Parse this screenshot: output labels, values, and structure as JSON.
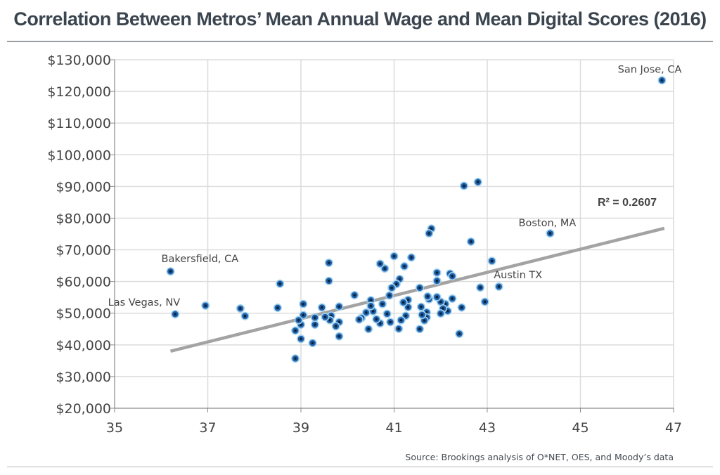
{
  "title": "Correlation Between Metros’ Mean Annual Wage and Mean Digital Scores (2016)",
  "source": "Source: Brookings analysis of O*NET, OES, and Moody’s data",
  "colors": {
    "title": "#3b4550",
    "point_fill": "#1e5fa8",
    "point_stroke": "#9fd0ee",
    "point_center": "#0b1f33",
    "trendline": "#a3a3a3",
    "grid": "#dcdcdc"
  },
  "chart_data": {
    "type": "scatter",
    "title": "Correlation Between Metros’ Mean Annual Wage and Mean Digital Scores (2016)",
    "xlabel": "",
    "ylabel": "",
    "xlim": [
      35,
      47
    ],
    "ylim": [
      20000,
      130000
    ],
    "x_ticks": [
      "35",
      "37",
      "39",
      "41",
      "43",
      "45",
      "47"
    ],
    "y_ticks": [
      "$20,000",
      "$30,000",
      "$40,000",
      "$50,000",
      "$60,000",
      "$70,000",
      "$80,000",
      "$90,000",
      "$100,000",
      "$110,000",
      "$120,000",
      "$130,000"
    ],
    "grid": true,
    "r_squared_label": "R² = 0.2607",
    "trendline": {
      "x": [
        36.2,
        46.8
      ],
      "y": [
        38000,
        76800
      ]
    },
    "annotations": [
      {
        "text": "San Jose, CA",
        "x": 46.75,
        "y": 123500
      },
      {
        "text": "Boston, MA",
        "x": 44.35,
        "y": 75200
      },
      {
        "text": "Austin TX",
        "x": 43.2,
        "y": 58400
      },
      {
        "text": "Bakersfield, CA",
        "x": 36.2,
        "y": 63200
      },
      {
        "text": "Las Vegas, NV",
        "x": 36.3,
        "y": 49700
      }
    ],
    "points": [
      [
        46.75,
        123500
      ],
      [
        44.35,
        75200
      ],
      [
        42.8,
        91400
      ],
      [
        42.5,
        90200
      ],
      [
        43.25,
        58400
      ],
      [
        43.1,
        66500
      ],
      [
        42.95,
        53600
      ],
      [
        42.85,
        58100
      ],
      [
        42.65,
        72600
      ],
      [
        42.4,
        43500
      ],
      [
        42.45,
        51800
      ],
      [
        42.25,
        54600
      ],
      [
        42.2,
        62500
      ],
      [
        42.25,
        61700
      ],
      [
        42.15,
        50700
      ],
      [
        42.1,
        52900
      ],
      [
        42.0,
        53600
      ],
      [
        42.05,
        51500
      ],
      [
        42.0,
        49900
      ],
      [
        41.92,
        55100
      ],
      [
        41.92,
        62800
      ],
      [
        41.92,
        60200
      ],
      [
        41.8,
        76700
      ],
      [
        41.75,
        75200
      ],
      [
        41.75,
        54400
      ],
      [
        41.72,
        55300
      ],
      [
        41.7,
        50300
      ],
      [
        41.7,
        48700
      ],
      [
        41.65,
        47700
      ],
      [
        41.6,
        49500
      ],
      [
        41.58,
        52000
      ],
      [
        41.55,
        45000
      ],
      [
        41.55,
        58000
      ],
      [
        41.37,
        67600
      ],
      [
        41.3,
        54200
      ],
      [
        41.3,
        51900
      ],
      [
        41.25,
        49200
      ],
      [
        41.22,
        64800
      ],
      [
        41.2,
        53400
      ],
      [
        41.15,
        47800
      ],
      [
        41.12,
        60800
      ],
      [
        41.1,
        45100
      ],
      [
        41.05,
        59200
      ],
      [
        41.0,
        68000
      ],
      [
        40.95,
        58000
      ],
      [
        40.9,
        55600
      ],
      [
        40.92,
        47200
      ],
      [
        40.85,
        49800
      ],
      [
        40.8,
        64100
      ],
      [
        40.75,
        52900
      ],
      [
        40.7,
        65600
      ],
      [
        40.7,
        46800
      ],
      [
        40.62,
        48100
      ],
      [
        40.55,
        50600
      ],
      [
        40.5,
        54100
      ],
      [
        40.5,
        52300
      ],
      [
        40.45,
        45000
      ],
      [
        40.4,
        50200
      ],
      [
        40.3,
        48500
      ],
      [
        40.25,
        48000
      ],
      [
        40.15,
        55700
      ],
      [
        39.82,
        52100
      ],
      [
        39.82,
        47200
      ],
      [
        39.82,
        42700
      ],
      [
        39.75,
        45900
      ],
      [
        39.65,
        49200
      ],
      [
        39.62,
        47800
      ],
      [
        39.6,
        65900
      ],
      [
        39.6,
        60200
      ],
      [
        39.52,
        48800
      ],
      [
        39.45,
        51800
      ],
      [
        39.3,
        46400
      ],
      [
        39.3,
        48600
      ],
      [
        39.25,
        40600
      ],
      [
        39.05,
        52900
      ],
      [
        39.05,
        49400
      ],
      [
        39.0,
        46400
      ],
      [
        39.0,
        41900
      ],
      [
        38.95,
        47800
      ],
      [
        38.88,
        35700
      ],
      [
        38.88,
        44500
      ],
      [
        38.55,
        59300
      ],
      [
        38.5,
        51700
      ],
      [
        37.8,
        49100
      ],
      [
        37.7,
        51500
      ],
      [
        36.95,
        52400
      ],
      [
        36.3,
        49700
      ],
      [
        36.2,
        63200
      ]
    ]
  }
}
